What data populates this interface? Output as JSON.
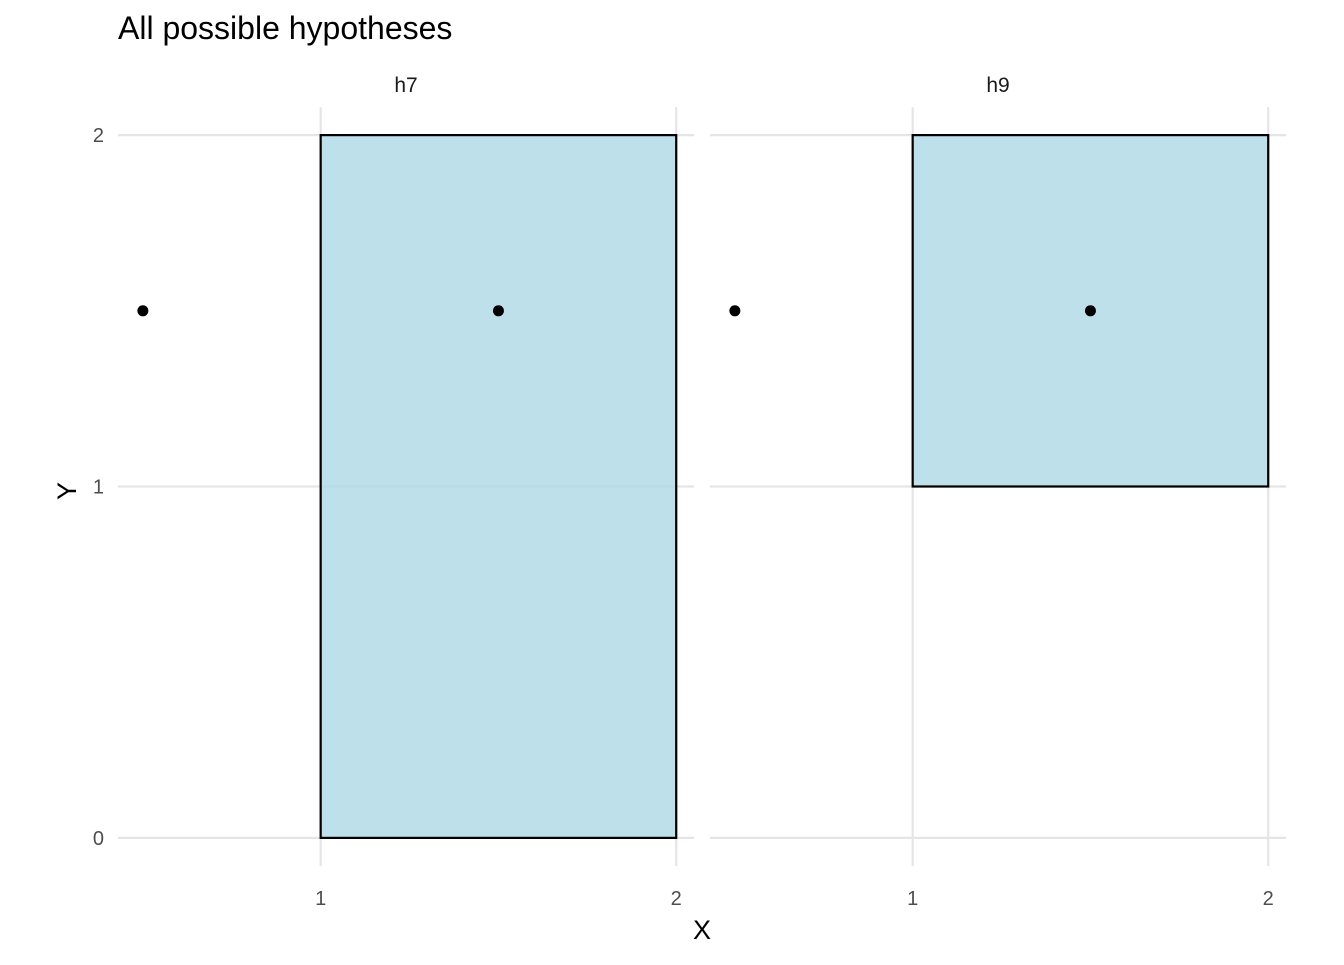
{
  "chart_data": {
    "type": "faceted-rectangles-with-points",
    "title": "All possible hypotheses",
    "xlabel": "X",
    "ylabel": "Y",
    "xlim": [
      0.43,
      2.05
    ],
    "ylim": [
      -0.08,
      2.08
    ],
    "x_ticks": [
      1,
      2
    ],
    "y_ticks": [
      0,
      1,
      2
    ],
    "grid": true,
    "rect_fill": "#ADD8E6",
    "rect_fill_opacity": 0.8,
    "rect_stroke": "#000000",
    "point_color": "#000000",
    "facets": [
      {
        "label": "h7",
        "rect": {
          "xmin": 1,
          "xmax": 2,
          "ymin": 0,
          "ymax": 2
        },
        "points": [
          {
            "x": 0.5,
            "y": 1.5
          },
          {
            "x": 1.5,
            "y": 1.5
          }
        ]
      },
      {
        "label": "h9",
        "rect": {
          "xmin": 1,
          "xmax": 2,
          "ymin": 1,
          "ymax": 2
        },
        "points": [
          {
            "x": 0.5,
            "y": 1.5
          },
          {
            "x": 1.5,
            "y": 1.5
          }
        ]
      }
    ]
  }
}
